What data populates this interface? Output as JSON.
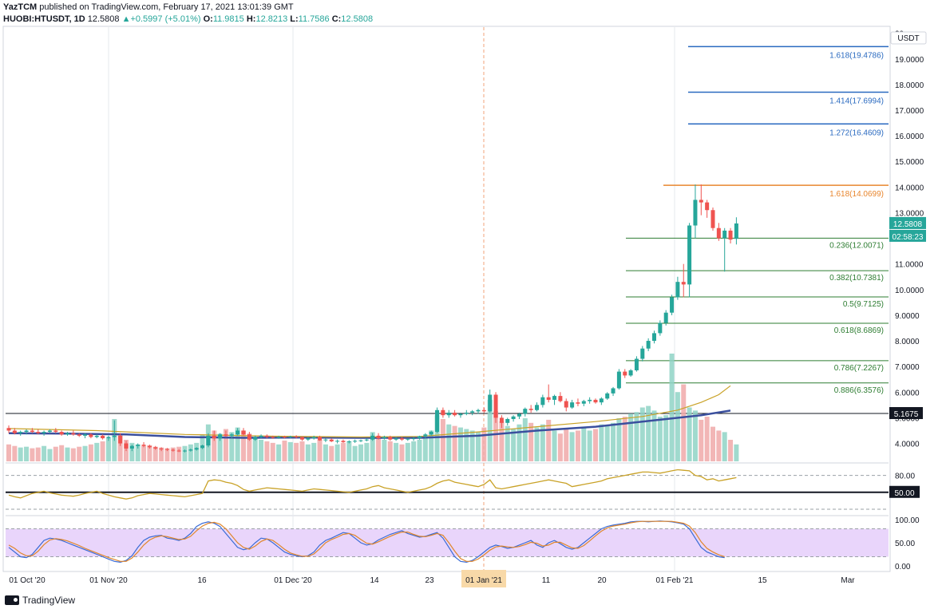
{
  "header": {
    "publisher": "YazTCM",
    "published_text": "published on TradingView.com, February 17, 2021 13:01:39 GMT",
    "symbol": "HUOBI:HTUSDT, 1D",
    "last": "12.5808",
    "change": "+0.5997 (+5.01%)",
    "o_label": "O:",
    "o_val": "11.9815",
    "h_label": "H:",
    "h_val": "12.8213",
    "l_label": "L:",
    "l_val": "11.7586",
    "c_label": "C:",
    "c_val": "12.5808"
  },
  "footer": {
    "brand": "TradingView"
  },
  "chart_data": {
    "type": "candlestick",
    "currency_label": "USDT",
    "price_axis": {
      "min": 3.3,
      "max": 20.3,
      "ticks": [
        "20",
        "19.0000",
        "18.0000",
        "17.0000",
        "16.0000",
        "15.0000",
        "14.0000",
        "13.0000",
        "12.0000",
        "11.0000",
        "10.0000",
        "9.0000",
        "8.0000",
        "7.0000",
        "6.0000",
        "5.0000",
        "4.0000"
      ]
    },
    "x_tick_labels": [
      "01 Oct '20",
      "01 Nov '20",
      "16",
      "01 Dec '20",
      "14",
      "23",
      "01 Jan '21",
      "11",
      "20",
      "01 Feb '21",
      "15",
      "Mar"
    ],
    "last_price_label": "12.5808",
    "countdown_label": "02:58:23",
    "support_line": {
      "value": 5.1675,
      "label": "5.1675"
    },
    "fib_extensions": [
      {
        "label": "1.618(19.4786)",
        "value": 19.4786
      },
      {
        "label": "1.414(17.6994)",
        "value": 17.6994
      },
      {
        "label": "1.272(16.4609)",
        "value": 16.4609
      },
      {
        "label": "1.618(14.0699)",
        "value": 14.0699
      }
    ],
    "fib_retracements": [
      {
        "label": "0.236(12.0071)",
        "value": 12.0071
      },
      {
        "label": "0.382(10.7381)",
        "value": 10.7381
      },
      {
        "label": "0.5(9.7125)",
        "value": 9.7125
      },
      {
        "label": "0.618(8.6869)",
        "value": 8.6869
      },
      {
        "label": "0.786(7.2267)",
        "value": 7.2267
      },
      {
        "label": "0.886(6.3576)",
        "value": 6.3576
      }
    ],
    "candles_ohlc": [
      [
        4.6,
        4.7,
        4.4,
        4.5
      ],
      [
        4.5,
        4.6,
        4.35,
        4.4
      ],
      [
        4.4,
        4.5,
        4.3,
        4.45
      ],
      [
        4.45,
        4.55,
        4.35,
        4.5
      ],
      [
        4.5,
        4.6,
        4.4,
        4.45
      ],
      [
        4.45,
        4.55,
        4.35,
        4.4
      ],
      [
        4.4,
        4.5,
        4.3,
        4.45
      ],
      [
        4.45,
        4.55,
        4.4,
        4.5
      ],
      [
        4.5,
        4.6,
        4.4,
        4.45
      ],
      [
        4.45,
        4.5,
        4.3,
        4.35
      ],
      [
        4.35,
        4.45,
        4.3,
        4.4
      ],
      [
        4.4,
        4.5,
        4.3,
        4.35
      ],
      [
        4.35,
        4.4,
        4.25,
        4.3
      ],
      [
        4.3,
        4.4,
        4.2,
        4.35
      ],
      [
        4.35,
        4.4,
        4.2,
        4.25
      ],
      [
        4.25,
        4.35,
        4.2,
        4.3
      ],
      [
        4.3,
        4.35,
        4.15,
        4.2
      ],
      [
        4.2,
        4.3,
        4.1,
        4.25
      ],
      [
        4.25,
        4.9,
        4.1,
        4.3
      ],
      [
        4.3,
        4.4,
        3.9,
        4.0
      ],
      [
        4.0,
        4.1,
        3.7,
        3.8
      ],
      [
        3.8,
        3.95,
        3.7,
        3.9
      ],
      [
        3.9,
        4.0,
        3.8,
        3.95
      ],
      [
        3.95,
        4.05,
        3.85,
        3.9
      ],
      [
        3.9,
        3.95,
        3.8,
        3.85
      ],
      [
        3.85,
        3.9,
        3.75,
        3.8
      ],
      [
        3.8,
        3.85,
        3.7,
        3.78
      ],
      [
        3.78,
        3.82,
        3.7,
        3.75
      ],
      [
        3.75,
        3.8,
        3.68,
        3.72
      ],
      [
        3.72,
        3.78,
        3.66,
        3.7
      ],
      [
        3.7,
        3.76,
        3.65,
        3.72
      ],
      [
        3.72,
        3.8,
        3.68,
        3.76
      ],
      [
        3.76,
        3.85,
        3.72,
        3.82
      ],
      [
        3.82,
        3.95,
        3.78,
        3.92
      ],
      [
        3.92,
        4.4,
        3.85,
        4.3
      ],
      [
        4.3,
        4.5,
        4.1,
        4.2
      ],
      [
        4.2,
        4.4,
        4.1,
        4.35
      ],
      [
        4.35,
        4.5,
        4.25,
        4.3
      ],
      [
        4.3,
        4.4,
        4.2,
        4.35
      ],
      [
        4.35,
        4.6,
        4.3,
        4.5
      ],
      [
        4.5,
        4.6,
        4.3,
        4.35
      ],
      [
        4.35,
        4.45,
        4.1,
        4.15
      ],
      [
        4.15,
        4.3,
        4.1,
        4.25
      ],
      [
        4.25,
        4.35,
        4.2,
        4.3
      ],
      [
        4.3,
        4.35,
        4.2,
        4.25
      ],
      [
        4.25,
        4.3,
        4.18,
        4.22
      ],
      [
        4.22,
        4.3,
        4.18,
        4.26
      ],
      [
        4.26,
        4.3,
        4.2,
        4.24
      ],
      [
        4.24,
        4.3,
        4.2,
        4.27
      ],
      [
        4.27,
        4.32,
        4.2,
        4.24
      ],
      [
        4.24,
        4.28,
        4.1,
        4.15
      ],
      [
        4.15,
        4.25,
        4.1,
        4.2
      ],
      [
        4.2,
        4.3,
        4.15,
        4.25
      ],
      [
        4.25,
        4.3,
        4.1,
        4.12
      ],
      [
        4.12,
        4.2,
        4.05,
        4.15
      ],
      [
        4.15,
        4.2,
        4.05,
        4.08
      ],
      [
        4.08,
        4.15,
        4.0,
        4.1
      ],
      [
        4.1,
        4.15,
        4.02,
        4.05
      ],
      [
        4.05,
        4.12,
        4.0,
        4.08
      ],
      [
        4.08,
        4.15,
        4.02,
        4.1
      ],
      [
        4.1,
        4.15,
        4.05,
        4.12
      ],
      [
        4.12,
        4.2,
        4.08,
        4.15
      ],
      [
        4.15,
        4.4,
        4.1,
        4.3
      ],
      [
        4.3,
        4.4,
        4.15,
        4.2
      ],
      [
        4.2,
        4.3,
        4.15,
        4.25
      ],
      [
        4.25,
        4.3,
        4.1,
        4.15
      ],
      [
        4.15,
        4.25,
        4.1,
        4.2
      ],
      [
        4.2,
        4.25,
        4.1,
        4.15
      ],
      [
        4.15,
        4.2,
        4.1,
        4.18
      ],
      [
        4.18,
        4.25,
        4.1,
        4.2
      ],
      [
        4.2,
        4.3,
        4.15,
        4.28
      ],
      [
        4.28,
        4.4,
        4.2,
        4.35
      ],
      [
        4.35,
        4.5,
        4.3,
        4.45
      ],
      [
        4.45,
        5.4,
        4.4,
        5.3
      ],
      [
        5.3,
        5.4,
        5.0,
        5.1
      ],
      [
        5.1,
        5.3,
        5.0,
        5.2
      ],
      [
        5.2,
        5.3,
        5.05,
        5.1
      ],
      [
        5.1,
        5.2,
        5.0,
        5.15
      ],
      [
        5.15,
        5.3,
        5.1,
        5.2
      ],
      [
        5.2,
        5.3,
        5.1,
        5.25
      ],
      [
        5.25,
        5.35,
        5.15,
        5.3
      ],
      [
        5.3,
        5.4,
        5.2,
        5.25
      ],
      [
        5.25,
        6.1,
        5.2,
        5.9
      ],
      [
        5.9,
        6.0,
        4.8,
        5.0
      ],
      [
        5.0,
        5.1,
        4.6,
        4.8
      ],
      [
        4.8,
        5.0,
        4.7,
        4.95
      ],
      [
        4.95,
        5.1,
        4.85,
        5.05
      ],
      [
        5.05,
        5.2,
        4.95,
        5.15
      ],
      [
        5.15,
        5.4,
        5.05,
        5.35
      ],
      [
        5.35,
        5.5,
        5.2,
        5.3
      ],
      [
        5.3,
        5.6,
        5.25,
        5.5
      ],
      [
        5.5,
        5.9,
        5.4,
        5.8
      ],
      [
        5.8,
        6.3,
        5.6,
        5.7
      ],
      [
        5.7,
        5.9,
        5.5,
        5.85
      ],
      [
        5.85,
        6.0,
        5.6,
        5.65
      ],
      [
        5.65,
        5.75,
        5.25,
        5.4
      ],
      [
        5.4,
        5.7,
        5.35,
        5.6
      ],
      [
        5.6,
        5.75,
        5.45,
        5.55
      ],
      [
        5.55,
        5.7,
        5.45,
        5.65
      ],
      [
        5.65,
        5.8,
        5.55,
        5.7
      ],
      [
        5.7,
        5.75,
        5.55,
        5.6
      ],
      [
        5.6,
        5.8,
        5.5,
        5.75
      ],
      [
        5.75,
        6.0,
        5.7,
        5.95
      ],
      [
        5.95,
        6.2,
        5.85,
        6.15
      ],
      [
        6.15,
        6.9,
        6.1,
        6.8
      ],
      [
        6.8,
        6.9,
        6.55,
        6.65
      ],
      [
        6.65,
        6.9,
        6.6,
        6.85
      ],
      [
        6.85,
        7.4,
        6.8,
        7.3
      ],
      [
        7.3,
        7.8,
        7.2,
        7.7
      ],
      [
        7.7,
        8.1,
        7.6,
        8.0
      ],
      [
        8.0,
        8.4,
        7.9,
        8.3
      ],
      [
        8.3,
        8.8,
        8.2,
        8.7
      ],
      [
        8.7,
        9.2,
        8.6,
        9.1
      ],
      [
        9.1,
        9.8,
        9.0,
        9.7
      ],
      [
        9.7,
        10.5,
        9.6,
        10.3
      ],
      [
        10.3,
        11.0,
        9.7,
        10.2
      ],
      [
        10.2,
        12.6,
        9.7,
        12.5
      ],
      [
        12.5,
        14.1,
        12.0,
        13.5
      ],
      [
        13.5,
        14.1,
        12.9,
        13.4
      ],
      [
        13.4,
        13.5,
        12.8,
        13.1
      ],
      [
        13.1,
        13.2,
        12.3,
        12.4
      ],
      [
        12.4,
        12.6,
        11.9,
        12.0
      ],
      [
        12.0,
        12.4,
        10.7,
        12.3
      ],
      [
        12.3,
        12.4,
        11.8,
        11.95
      ],
      [
        11.98,
        12.82,
        11.76,
        12.58
      ]
    ],
    "ma_series": [
      {
        "name": "MA (fast)",
        "color": "#3a4f9e",
        "values": [
          [
            0,
            4.4
          ],
          [
            10,
            4.38
          ],
          [
            20,
            4.35
          ],
          [
            30,
            4.25
          ],
          [
            40,
            4.22
          ],
          [
            50,
            4.23
          ],
          [
            60,
            4.22
          ],
          [
            70,
            4.22
          ],
          [
            80,
            4.3
          ],
          [
            90,
            4.5
          ],
          [
            100,
            4.65
          ],
          [
            110,
            4.9
          ],
          [
            118,
            5.1
          ],
          [
            123,
            5.28
          ]
        ]
      },
      {
        "name": "MA (slow)",
        "color": "#c9a227",
        "values": [
          [
            0,
            4.58
          ],
          [
            15,
            4.5
          ],
          [
            30,
            4.35
          ],
          [
            45,
            4.28
          ],
          [
            60,
            4.25
          ],
          [
            70,
            4.27
          ],
          [
            80,
            4.45
          ],
          [
            90,
            4.65
          ],
          [
            100,
            4.85
          ],
          [
            108,
            5.05
          ],
          [
            114,
            5.3
          ],
          [
            118,
            5.6
          ],
          [
            121,
            5.9
          ],
          [
            123,
            6.25
          ]
        ]
      }
    ],
    "volume": [
      22,
      20,
      18,
      19,
      17,
      18,
      20,
      16,
      19,
      21,
      18,
      17,
      19,
      20,
      22,
      24,
      26,
      30,
      55,
      35,
      28,
      24,
      22,
      20,
      21,
      19,
      18,
      17,
      18,
      19,
      20,
      22,
      24,
      35,
      48,
      40,
      36,
      42,
      38,
      44,
      40,
      36,
      30,
      28,
      26,
      24,
      22,
      27,
      25,
      24,
      26,
      22,
      24,
      28,
      22,
      20,
      22,
      24,
      26,
      20,
      22,
      24,
      38,
      30,
      28,
      26,
      24,
      22,
      24,
      26,
      28,
      32,
      40,
      60,
      55,
      48,
      46,
      44,
      42,
      40,
      38,
      44,
      80,
      65,
      52,
      46,
      42,
      48,
      56,
      50,
      44,
      48,
      54,
      40,
      36,
      42,
      38,
      40,
      44,
      40,
      42,
      48,
      46,
      50,
      56,
      58,
      62,
      64,
      70,
      72,
      66,
      58,
      60,
      140,
      90,
      100,
      70,
      66,
      54,
      58,
      45,
      40,
      38,
      28,
      22
    ],
    "rsi": {
      "levels": [
        "80.00",
        "50.00"
      ],
      "line_color": "#c9a227",
      "values": [
        45,
        42,
        40,
        44,
        48,
        50,
        52,
        49,
        47,
        45,
        44,
        43,
        45,
        48,
        50,
        52,
        48,
        45,
        42,
        40,
        38,
        40,
        44,
        46,
        48,
        47,
        46,
        45,
        44,
        43,
        42,
        44,
        46,
        48,
        70,
        72,
        71,
        68,
        66,
        62,
        55,
        52,
        54,
        56,
        58,
        57,
        56,
        55,
        54,
        53,
        52,
        54,
        56,
        55,
        54,
        53,
        52,
        51,
        50,
        52,
        54,
        56,
        60,
        62,
        58,
        56,
        54,
        52,
        50,
        52,
        54,
        56,
        60,
        66,
        70,
        72,
        68,
        66,
        64,
        62,
        60,
        64,
        72,
        58,
        56,
        58,
        60,
        62,
        64,
        66,
        68,
        70,
        72,
        70,
        68,
        66,
        60,
        62,
        64,
        66,
        68,
        70,
        74,
        76,
        78,
        80,
        82,
        84,
        86,
        86,
        85,
        84,
        86,
        88,
        90,
        89,
        88,
        80,
        78,
        72,
        74,
        70,
        72,
        74,
        76
      ]
    },
    "stoch_rsi": {
      "levels": [
        "100.00",
        "50.00",
        "0.00"
      ],
      "k_color": "#3a6bd6",
      "d_color": "#e0862b",
      "k": [
        40,
        30,
        20,
        18,
        25,
        40,
        55,
        60,
        58,
        55,
        50,
        45,
        40,
        35,
        30,
        25,
        20,
        15,
        10,
        8,
        12,
        22,
        40,
        55,
        62,
        65,
        66,
        60,
        58,
        55,
        60,
        70,
        85,
        92,
        95,
        92,
        85,
        70,
        55,
        40,
        35,
        38,
        50,
        60,
        58,
        50,
        40,
        30,
        25,
        22,
        20,
        22,
        30,
        45,
        55,
        60,
        66,
        72,
        70,
        60,
        50,
        45,
        48,
        56,
        62,
        68,
        72,
        76,
        70,
        66,
        62,
        64,
        68,
        72,
        60,
        40,
        20,
        10,
        8,
        12,
        20,
        30,
        40,
        45,
        42,
        38,
        40,
        45,
        50,
        55,
        45,
        40,
        50,
        55,
        48,
        40,
        36,
        40,
        50,
        60,
        70,
        80,
        85,
        88,
        90,
        92,
        95,
        96,
        96,
        95,
        96,
        97,
        96,
        95,
        93,
        90,
        80,
        60,
        40,
        30,
        25,
        20,
        18
      ],
      "d": [
        45,
        38,
        28,
        22,
        22,
        32,
        46,
        56,
        59,
        57,
        54,
        49,
        44,
        38,
        33,
        28,
        23,
        18,
        14,
        10,
        10,
        17,
        30,
        45,
        56,
        62,
        65,
        63,
        60,
        57,
        58,
        64,
        76,
        86,
        92,
        94,
        90,
        80,
        65,
        50,
        40,
        36,
        43,
        53,
        58,
        55,
        46,
        36,
        28,
        24,
        21,
        21,
        26,
        37,
        50,
        57,
        62,
        68,
        70,
        66,
        57,
        49,
        47,
        52,
        58,
        64,
        69,
        73,
        73,
        68,
        64,
        63,
        66,
        70,
        66,
        50,
        32,
        16,
        10,
        10,
        15,
        24,
        34,
        41,
        43,
        41,
        40,
        42,
        46,
        51,
        49,
        43,
        45,
        51,
        51,
        45,
        39,
        38,
        44,
        54,
        65,
        75,
        82,
        86,
        88,
        90,
        93,
        95,
        96,
        96,
        96,
        96,
        96,
        96,
        94,
        92,
        86,
        72,
        52,
        38,
        30,
        24,
        20
      ]
    }
  }
}
